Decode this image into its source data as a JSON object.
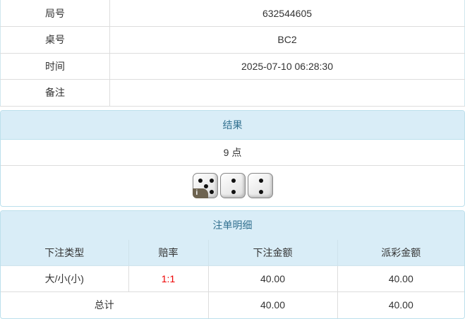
{
  "info": [
    {
      "label": "局号",
      "value": "632544605"
    },
    {
      "label": "桌号",
      "value": "BC2"
    },
    {
      "label": "时间",
      "value": "2025-07-10 06:28:30"
    },
    {
      "label": "备注",
      "value": ""
    }
  ],
  "result": {
    "title": "结果",
    "points": "9 点",
    "dice": [
      5,
      2,
      2
    ],
    "badge": "i"
  },
  "bets": {
    "title": "注单明细",
    "headers": [
      "下注类型",
      "赔率",
      "下注金额",
      "派彩金额"
    ],
    "rows": [
      {
        "type": "大/小(小)",
        "odds": "1:1",
        "amount": "40.00",
        "payout": "40.00"
      }
    ],
    "total": {
      "label": "总计",
      "amount": "40.00",
      "payout": "40.00"
    }
  }
}
